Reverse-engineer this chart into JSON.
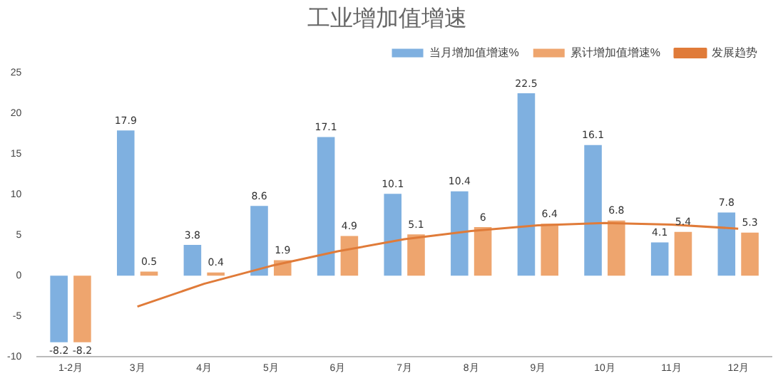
{
  "chart_data": {
    "type": "bar",
    "title": "工业增加值增速",
    "categories": [
      "1-2月",
      "3月",
      "4月",
      "5月",
      "6月",
      "7月",
      "8月",
      "9月",
      "10月",
      "11月",
      "12月"
    ],
    "series": [
      {
        "name": "当月增加值增速%",
        "color": "#7fb0e0",
        "values": [
          -8.2,
          17.9,
          3.8,
          8.6,
          17.1,
          10.1,
          10.4,
          22.5,
          16.1,
          4.1,
          7.8
        ],
        "value_labels": [
          "-8.2",
          "17.9",
          "3.8",
          "8.6",
          "17.1",
          "10.1",
          "10.4",
          "22.5",
          "16.1",
          "4.1",
          "7.8"
        ]
      },
      {
        "name": "累计增加值增速%",
        "color": "#eea56e",
        "values": [
          -8.2,
          0.5,
          0.4,
          1.9,
          4.9,
          5.1,
          6,
          6.4,
          6.8,
          5.4,
          5.3
        ],
        "value_labels": [
          "-8.2",
          "0.5",
          "0.4",
          "1.9",
          "4.9",
          "5.1",
          "6",
          "6.4",
          "6.8",
          "5.4",
          "5.3"
        ]
      },
      {
        "name": "发展趋势",
        "type": "line",
        "color": "#e07b39",
        "values": [
          null,
          -3.8,
          -1,
          1.2,
          3,
          4.5,
          5.5,
          6.2,
          6.5,
          6.3,
          5.8
        ]
      }
    ],
    "ylim": [
      -10,
      25
    ],
    "yticks": [
      -10,
      -5,
      0,
      5,
      10,
      15,
      20,
      25
    ],
    "grid": false,
    "legend": "top right",
    "marker": "none"
  }
}
